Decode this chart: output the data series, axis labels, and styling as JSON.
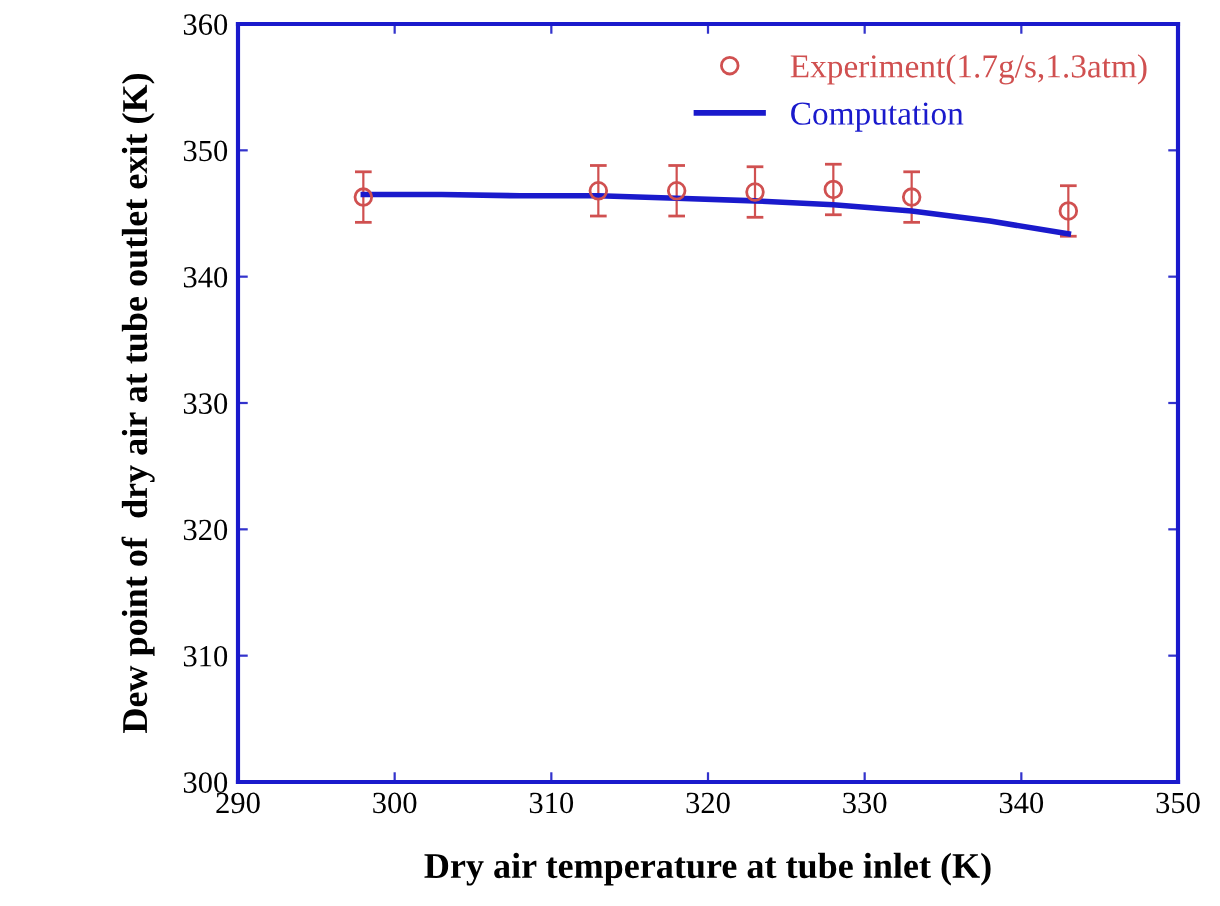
{
  "chart_data": {
    "type": "scatter",
    "xlabel": "Dry air temperature at tube inlet (K)",
    "ylabel": "Dew point of  dry air at tube outlet exit (K)",
    "xlim": [
      290,
      350
    ],
    "xticks": [
      290,
      300,
      310,
      320,
      330,
      340,
      350
    ],
    "ylim": [
      300,
      360
    ],
    "yticks": [
      300,
      310,
      320,
      330,
      340,
      350,
      360
    ],
    "grid": false,
    "legend": "top right",
    "series": [
      {
        "name": "Experiment(1.7g/s,1.3atm)",
        "color": "#d05050",
        "marker": "circle",
        "x": [
          298,
          313,
          318,
          323,
          328,
          333,
          343
        ],
        "values": [
          346.3,
          346.8,
          346.8,
          346.7,
          346.9,
          346.3,
          345.2
        ],
        "errors": [
          2,
          2,
          2,
          2,
          2,
          2,
          2
        ]
      },
      {
        "name": "Computation",
        "type": "line",
        "color": "#1a1acc",
        "marker": "none",
        "line_style": "solid",
        "x": [
          298,
          303,
          308,
          313,
          318,
          323,
          328,
          333,
          338,
          343
        ],
        "values": [
          346.5,
          346.5,
          346.4,
          346.4,
          346.2,
          346.0,
          345.7,
          345.2,
          344.4,
          343.4
        ]
      }
    ]
  }
}
